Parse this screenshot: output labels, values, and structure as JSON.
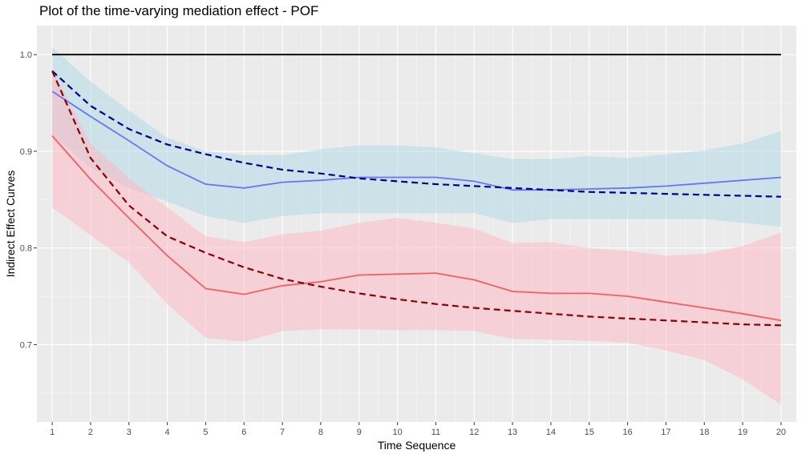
{
  "chart_data": {
    "type": "line",
    "title": "Plot of the time-varying mediation effect - POF",
    "xlabel": "Time Sequence",
    "ylabel": "Indirect Effect Curves",
    "x": [
      1,
      2,
      3,
      4,
      5,
      6,
      7,
      8,
      9,
      10,
      11,
      12,
      13,
      14,
      15,
      16,
      17,
      18,
      19,
      20
    ],
    "xlim": [
      0.6,
      20.4
    ],
    "ylim": [
      0.62,
      1.03
    ],
    "y_ticks": [
      0.7,
      0.8,
      0.9,
      1.0
    ],
    "y_tick_labels": [
      "0.7",
      "0.8",
      "0.9",
      "1.0"
    ],
    "x_tick_labels": [
      "1",
      "2",
      "3",
      "4",
      "5",
      "6",
      "7",
      "8",
      "9",
      "10",
      "11",
      "12",
      "13",
      "14",
      "15",
      "16",
      "17",
      "18",
      "19",
      "20"
    ],
    "grid": true,
    "legend": "none",
    "colors": {
      "panel": "#ebebeb",
      "grid_major": "#ffffff",
      "blue_band": "#add8e6",
      "pink_band": "#ffb6c1",
      "blue_line": "#6476f3",
      "red_line": "#f06060",
      "navy_dash": "#00008b",
      "darkred_dash": "#8b0000",
      "reference": "#000000"
    },
    "series": [
      {
        "kind": "reference",
        "color": "#000000",
        "values": [
          1.0,
          1.0,
          1.0,
          1.0,
          1.0,
          1.0,
          1.0,
          1.0,
          1.0,
          1.0,
          1.0,
          1.0,
          1.0,
          1.0,
          1.0,
          1.0,
          1.0,
          1.0,
          1.0,
          1.0
        ]
      },
      {
        "kind": "band",
        "color": "#add8e6",
        "lower": [
          0.917,
          0.883,
          0.862,
          0.848,
          0.833,
          0.826,
          0.833,
          0.836,
          0.836,
          0.836,
          0.836,
          0.836,
          0.826,
          0.83,
          0.83,
          0.83,
          0.83,
          0.83,
          0.826,
          0.822
        ],
        "upper": [
          1.008,
          0.972,
          0.942,
          0.914,
          0.9,
          0.896,
          0.896,
          0.902,
          0.906,
          0.906,
          0.904,
          0.898,
          0.892,
          0.892,
          0.895,
          0.893,
          0.897,
          0.901,
          0.908,
          0.921
        ]
      },
      {
        "kind": "band",
        "color": "#ffb6c1",
        "lower": [
          0.842,
          0.813,
          0.785,
          0.742,
          0.707,
          0.703,
          0.714,
          0.716,
          0.716,
          0.715,
          0.715,
          0.714,
          0.706,
          0.705,
          0.704,
          0.702,
          0.694,
          0.684,
          0.664,
          0.638
        ],
        "upper": [
          0.985,
          0.908,
          0.872,
          0.842,
          0.812,
          0.806,
          0.814,
          0.818,
          0.826,
          0.831,
          0.826,
          0.82,
          0.805,
          0.806,
          0.8,
          0.797,
          0.792,
          0.794,
          0.802,
          0.816
        ]
      },
      {
        "kind": "line",
        "color": "#6476f3",
        "values": [
          0.962,
          0.936,
          0.911,
          0.885,
          0.866,
          0.862,
          0.868,
          0.87,
          0.873,
          0.873,
          0.873,
          0.869,
          0.86,
          0.86,
          0.861,
          0.862,
          0.864,
          0.867,
          0.87,
          0.873
        ]
      },
      {
        "kind": "line",
        "color": "#f06060",
        "values": [
          0.916,
          0.871,
          0.831,
          0.792,
          0.758,
          0.752,
          0.761,
          0.765,
          0.772,
          0.773,
          0.774,
          0.767,
          0.755,
          0.753,
          0.753,
          0.75,
          0.744,
          0.738,
          0.732,
          0.725
        ]
      },
      {
        "kind": "dashed",
        "color": "#00008b",
        "values": [
          0.983,
          0.947,
          0.923,
          0.907,
          0.897,
          0.888,
          0.881,
          0.877,
          0.872,
          0.869,
          0.866,
          0.864,
          0.862,
          0.86,
          0.858,
          0.857,
          0.856,
          0.855,
          0.854,
          0.853
        ]
      },
      {
        "kind": "dashed",
        "color": "#8b0000",
        "values": [
          0.983,
          0.893,
          0.844,
          0.812,
          0.795,
          0.78,
          0.768,
          0.76,
          0.753,
          0.747,
          0.742,
          0.738,
          0.735,
          0.732,
          0.729,
          0.727,
          0.725,
          0.723,
          0.721,
          0.72
        ]
      }
    ]
  }
}
